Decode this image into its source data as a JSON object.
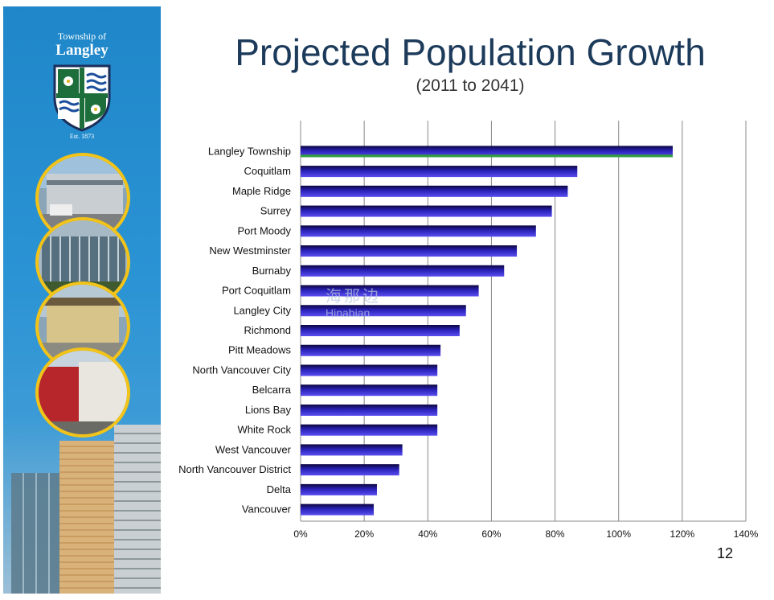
{
  "slide": {
    "title": "Projected Population Growth",
    "subtitle": "(2011 to 2041)",
    "page_number": "12"
  },
  "sidebar": {
    "brand_line1": "Township of",
    "brand_line2": "Langley",
    "established": "Est. 1873",
    "colors": {
      "background": "#2188cb",
      "ring": "#f2c318",
      "crest_green": "#1e6e3c"
    }
  },
  "watermark": {
    "chinese": "海那边",
    "latin": "Hinabian"
  },
  "colors": {
    "bar_start": "#1a0a6e",
    "bar_end": "#3b3ae0",
    "highlight": "#2fa33a",
    "grid": "#888888",
    "title": "#1c3a5a"
  },
  "chart_data": {
    "type": "bar",
    "orientation": "horizontal",
    "title": "Projected Population Growth",
    "subtitle": "(2011 to 2041)",
    "xlabel": "",
    "ylabel": "",
    "xlim": [
      0,
      140
    ],
    "xticks": [
      "0%",
      "20%",
      "40%",
      "60%",
      "80%",
      "100%",
      "120%",
      "140%"
    ],
    "categories": [
      "Langley Township",
      "Coquitlam",
      "Maple Ridge",
      "Surrey",
      "Port Moody",
      "New Westminster",
      "Burnaby",
      "Port Coquitlam",
      "Langley City",
      "Richmond",
      "Pitt Meadows",
      "North Vancouver City",
      "Belcarra",
      "Lions Bay",
      "White Rock",
      "West Vancouver",
      "North Vancouver District",
      "Delta",
      "Vancouver"
    ],
    "values": [
      117,
      87,
      84,
      79,
      74,
      68,
      64,
      56,
      52,
      50,
      44,
      43,
      43,
      43,
      43,
      32,
      31,
      24,
      23
    ],
    "highlight_index": 0,
    "grid": true
  }
}
